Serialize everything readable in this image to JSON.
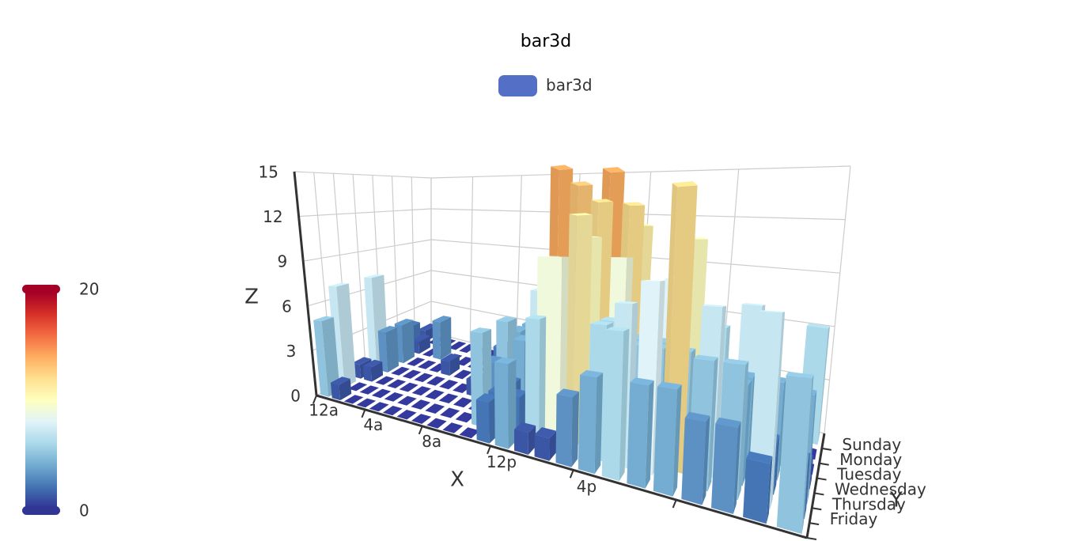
{
  "chart_data": {
    "type": "bar3d",
    "title": "bar3d",
    "categories": [
      "12a",
      null,
      null,
      null,
      "4a",
      null,
      null,
      null,
      "8a",
      null,
      null,
      null,
      "12p",
      null,
      null,
      null,
      "4p",
      null,
      null,
      null,
      null,
      null,
      null,
      null
    ],
    "y_categories": [
      null,
      "Friday",
      "Thursday",
      "Wednesday",
      "Tuesday",
      "Monday",
      "Sunday"
    ],
    "series": [
      {
        "name": "bar3d",
        "color": "#5470c6",
        "values": [
          [
            5,
            1,
            0,
            0,
            0,
            0,
            0,
            0,
            0,
            0,
            0,
            2,
            4,
            1,
            1,
            3,
            4,
            6,
            4,
            4,
            3,
            3,
            2,
            5
          ],
          [
            7,
            0,
            0,
            0,
            0,
            0,
            0,
            0,
            0,
            0,
            5,
            2,
            2,
            6,
            9,
            11,
            6,
            7,
            8,
            12,
            5,
            5,
            7,
            2
          ],
          [
            1,
            1,
            0,
            0,
            0,
            0,
            0,
            0,
            0,
            0,
            3,
            2,
            1,
            9,
            8,
            10,
            6,
            5,
            5,
            5,
            7,
            4,
            2,
            4
          ],
          [
            7,
            3,
            0,
            0,
            0,
            0,
            0,
            0,
            1,
            0,
            5,
            4,
            7,
            14,
            13,
            12,
            9,
            5,
            5,
            10,
            6,
            4,
            4,
            1
          ],
          [
            1,
            3,
            0,
            0,
            0,
            1,
            0,
            0,
            0,
            2,
            4,
            4,
            2,
            4,
            4,
            14,
            12,
            1,
            8,
            5,
            3,
            7,
            3,
            0
          ],
          [
            2,
            1,
            0,
            3,
            0,
            0,
            0,
            0,
            2,
            0,
            4,
            1,
            5,
            10,
            5,
            7,
            11,
            6,
            0,
            5,
            3,
            4,
            2,
            0
          ],
          [
            1,
            0,
            0,
            0,
            0,
            0,
            0,
            0,
            0,
            0,
            1,
            0,
            2,
            1,
            3,
            4,
            0,
            0,
            0,
            0,
            1,
            2,
            2,
            6
          ]
        ]
      }
    ],
    "zlim": [
      0,
      15
    ],
    "zticks": [
      0,
      3,
      6,
      9,
      12,
      15
    ],
    "xlabel": "X",
    "ylabel": "Y",
    "zlabel": "Z",
    "grid": true,
    "visual_map": {
      "min": 0,
      "max": 20,
      "colors": [
        "#313695",
        "#4575b4",
        "#74add1",
        "#abd9e9",
        "#e0f3f8",
        "#ffffbf",
        "#fee090",
        "#fdae61",
        "#f46d43",
        "#d73027",
        "#a50026"
      ]
    }
  }
}
